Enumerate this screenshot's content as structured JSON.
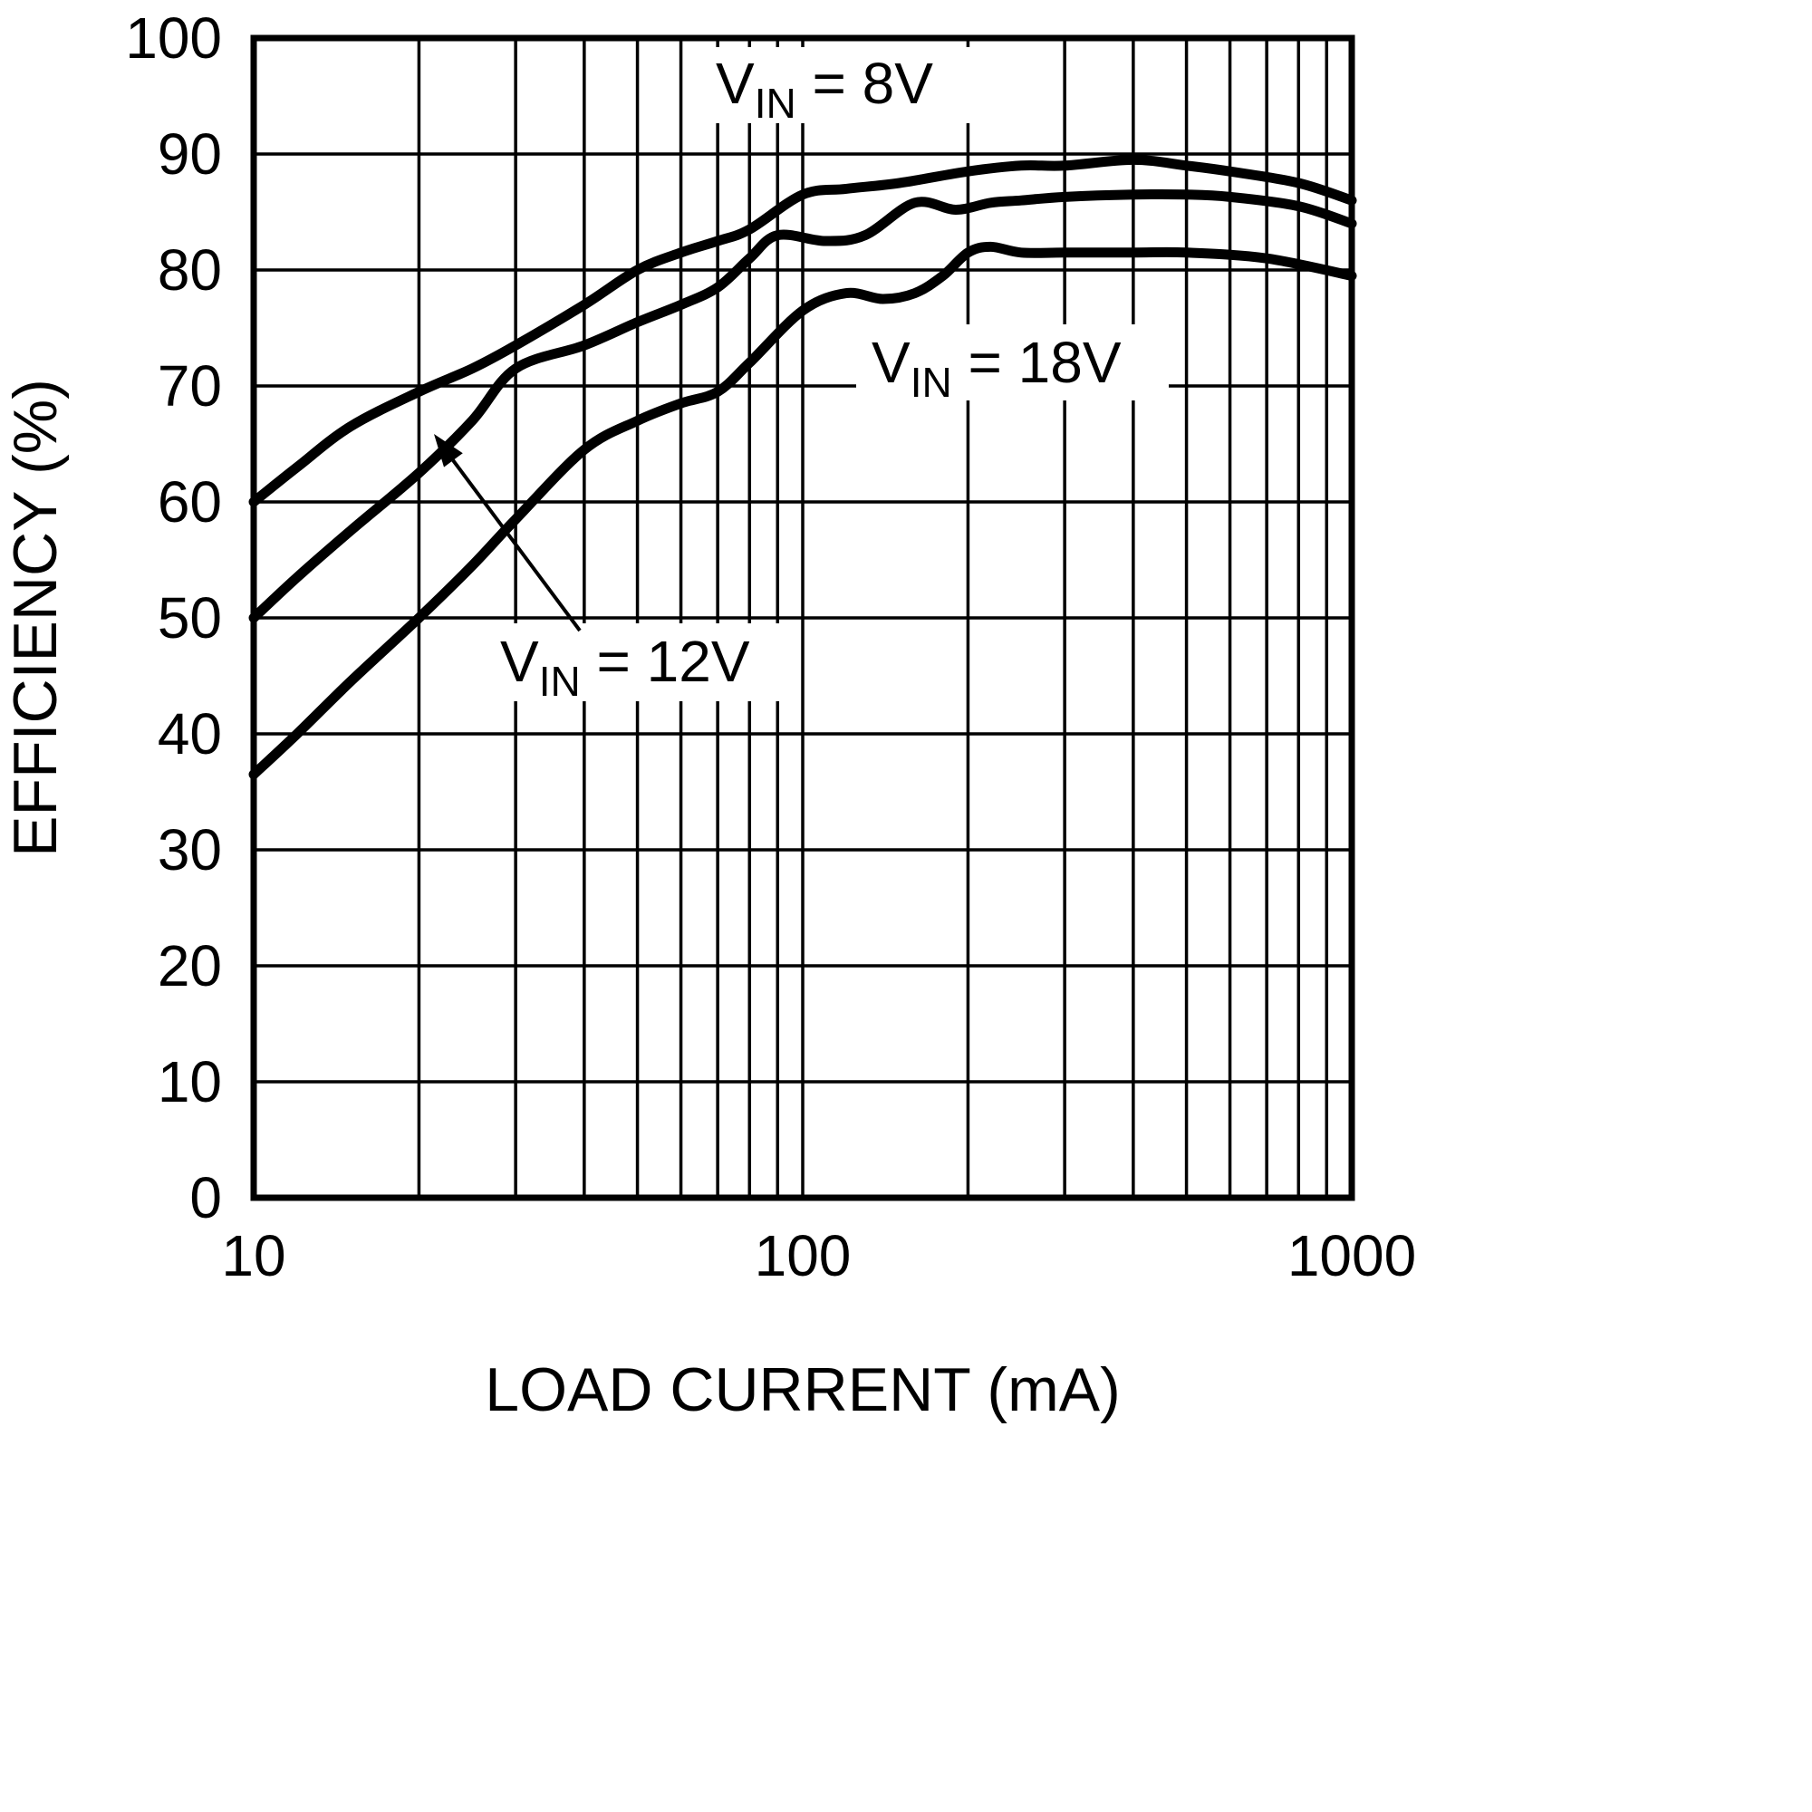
{
  "colors": {
    "background": "#ffffff",
    "line": "#000000",
    "grid": "#000000",
    "text": "#000000"
  },
  "chart_data": {
    "type": "line",
    "title": "",
    "xlabel": "LOAD CURRENT (mA)",
    "ylabel": "EFFICIENCY (%)",
    "x_scale": "log",
    "y_scale": "linear",
    "xlim": [
      10,
      1000
    ],
    "ylim": [
      0,
      100
    ],
    "x_ticks": [
      10,
      100,
      1000
    ],
    "x_tick_labels": [
      "10",
      "100",
      "1000"
    ],
    "y_ticks": [
      0,
      10,
      20,
      30,
      40,
      50,
      60,
      70,
      80,
      90,
      100
    ],
    "grid": "on",
    "legend_position": "inline-annotations",
    "series": [
      {
        "id": "vin-8v",
        "name": "VIN = 8V",
        "x": [
          10,
          12,
          15,
          20,
          25,
          30,
          40,
          50,
          60,
          70,
          80,
          100,
          120,
          150,
          200,
          250,
          300,
          400,
          500,
          600,
          800,
          1000
        ],
        "y": [
          60,
          63,
          66.5,
          69.5,
          71.5,
          73.5,
          77,
          80,
          81.5,
          82.5,
          83.5,
          86.5,
          87,
          87.5,
          88.5,
          89,
          89,
          89.5,
          89,
          88.5,
          87.5,
          86
        ]
      },
      {
        "id": "vin-12v",
        "name": "VIN = 12V",
        "x": [
          10,
          12,
          15,
          20,
          25,
          30,
          40,
          50,
          60,
          70,
          80,
          90,
          110,
          130,
          160,
          190,
          220,
          250,
          300,
          400,
          500,
          600,
          800,
          1000
        ],
        "y": [
          50,
          53.5,
          57.5,
          62.5,
          67,
          71.5,
          73.5,
          75.5,
          77,
          78.5,
          81,
          83,
          82.5,
          83,
          85.8,
          85.2,
          85.8,
          86,
          86.3,
          86.5,
          86.5,
          86.3,
          85.5,
          84
        ]
      },
      {
        "id": "vin-18v",
        "name": "VIN = 18V",
        "x": [
          10,
          12,
          15,
          20,
          25,
          30,
          40,
          50,
          60,
          70,
          80,
          100,
          120,
          140,
          160,
          180,
          200,
          220,
          250,
          300,
          400,
          500,
          700,
          1000
        ],
        "y": [
          36.5,
          40,
          44.5,
          50,
          54.5,
          58.5,
          64.5,
          67,
          68.5,
          69.5,
          72,
          76.5,
          78,
          77.5,
          78,
          79.5,
          81.5,
          82,
          81.5,
          81.5,
          81.5,
          81.5,
          81,
          79.5
        ]
      }
    ],
    "annotations": [
      {
        "id": "vin8",
        "prefix": "V",
        "sub": "IN",
        "suffix": " = 8V",
        "points_to": "vin-8v curve"
      },
      {
        "id": "vin18",
        "prefix": "V",
        "sub": "IN",
        "suffix": " = 18V",
        "points_to": "vin-18v curve"
      },
      {
        "id": "vin12",
        "prefix": "V",
        "sub": "IN",
        "suffix": " = 12V",
        "points_to": "vin-12v curve via arrow"
      }
    ]
  }
}
